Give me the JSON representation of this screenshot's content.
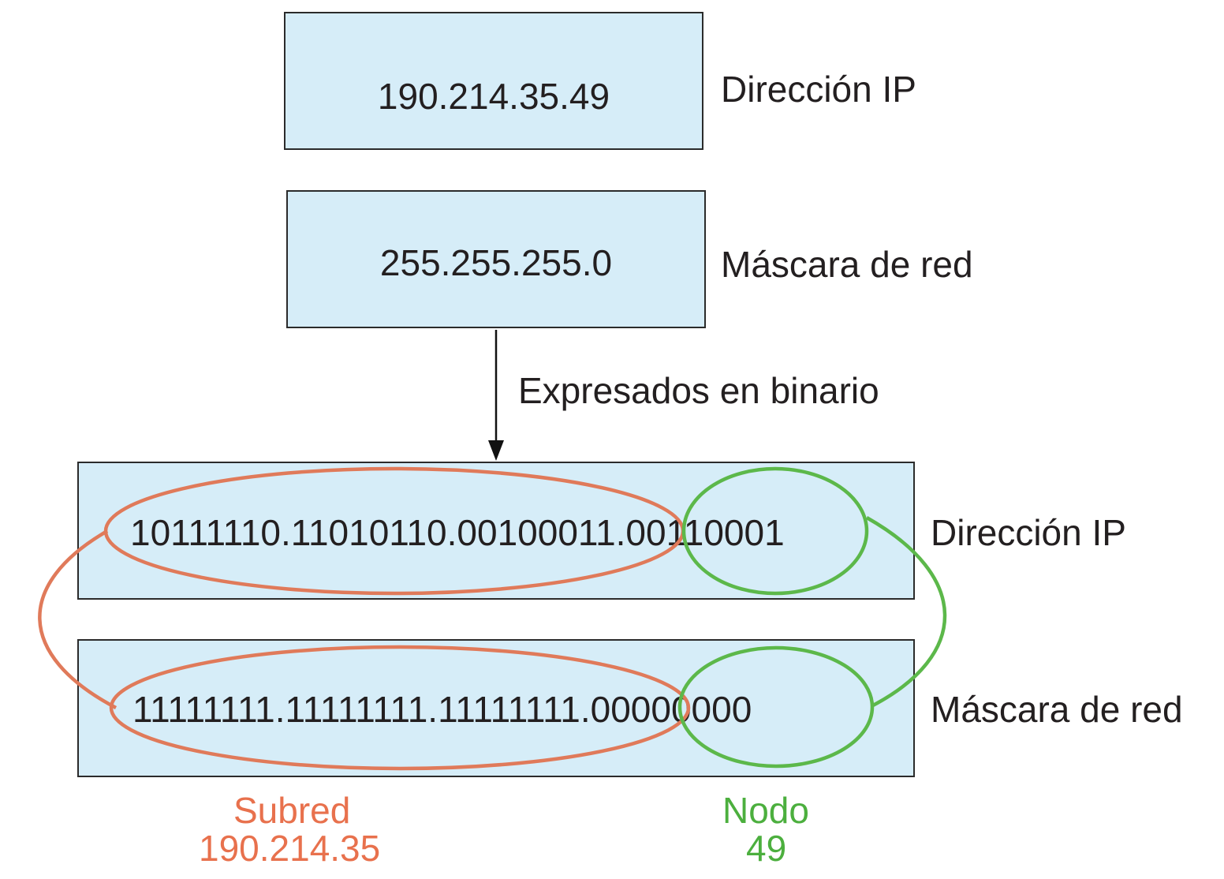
{
  "top": {
    "ip_value": "190.214.35.49",
    "ip_label": "Dirección IP",
    "mask_value": "255.255.255.0",
    "mask_label": "Máscara de red"
  },
  "arrow_label": "Expresados en binario",
  "binary": {
    "ip_value": "10111110.11010110.00100011.00110001",
    "ip_label": "Dirección IP",
    "mask_value": "11111111.11111111.11111111.00000000",
    "mask_label": "Máscara de red"
  },
  "subnet": {
    "title": "Subred",
    "value": "190.214.35",
    "color": "#e8714d"
  },
  "node": {
    "title": "Nodo",
    "value": "49",
    "color": "#4caf3e"
  },
  "colors": {
    "box_fill": "#d6edf8",
    "border": "#2b2b2b"
  }
}
